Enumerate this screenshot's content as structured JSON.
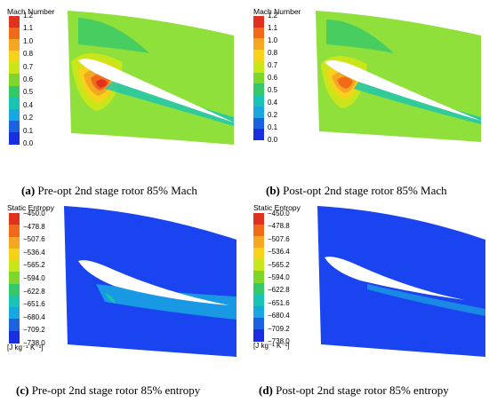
{
  "panels": [
    {
      "legend_title": "Mach Number",
      "ticks": [
        "1.2",
        "1.1",
        "1.0",
        "0.8",
        "0.7",
        "0.6",
        "0.5",
        "0.4",
        "0.2",
        "0.1",
        "0.0"
      ],
      "unit": "",
      "letter": "(a)",
      "caption": "Pre-opt 2nd stage rotor 85% Mach",
      "field": "mach-pre"
    },
    {
      "legend_title": "Mach Number",
      "ticks": [
        "1.2",
        "1.1",
        "1.0",
        "0.8",
        "0.7",
        "0.6",
        "0.5",
        "0.4",
        "0.2",
        "0.1",
        "0.0"
      ],
      "unit": "",
      "letter": "(b)",
      "caption": "Post-opt 2nd stage rotor 85% Mach",
      "field": "mach-post"
    },
    {
      "legend_title": "Static Entropy",
      "ticks": [
        "−450.0",
        "−478.8",
        "−507.6",
        "−536.4",
        "−565.2",
        "−594.0",
        "−622.8",
        "−651.6",
        "−680.4",
        "−709.2",
        "−738.0"
      ],
      "unit": "[J kg⁻¹ K⁻¹]",
      "letter": "(c)",
      "caption": "Pre-opt 2nd stage rotor 85% entropy",
      "field": "entropy-pre"
    },
    {
      "legend_title": "Static Entropy",
      "ticks": [
        "−450.0",
        "−478.8",
        "−507.6",
        "−536.4",
        "−565.2",
        "−594.0",
        "−622.8",
        "−651.6",
        "−680.4",
        "−709.2",
        "−738.0"
      ],
      "unit": "[J kg⁻¹ K⁻¹]",
      "letter": "(d)",
      "caption": "Post-opt 2nd stage rotor 85% entropy",
      "field": "entropy-post"
    }
  ],
  "colors": {
    "scale": [
      "#e0301e",
      "#f06a1a",
      "#f5a623",
      "#f7d21a",
      "#c9e61a",
      "#7fd62a",
      "#35c86a",
      "#19c4b4",
      "#1aa7e0",
      "#1a62e0",
      "#1a2ee0"
    ],
    "field_green": "#8fe03a",
    "field_blue": "#1a44f0",
    "blade": "#ffffff"
  }
}
